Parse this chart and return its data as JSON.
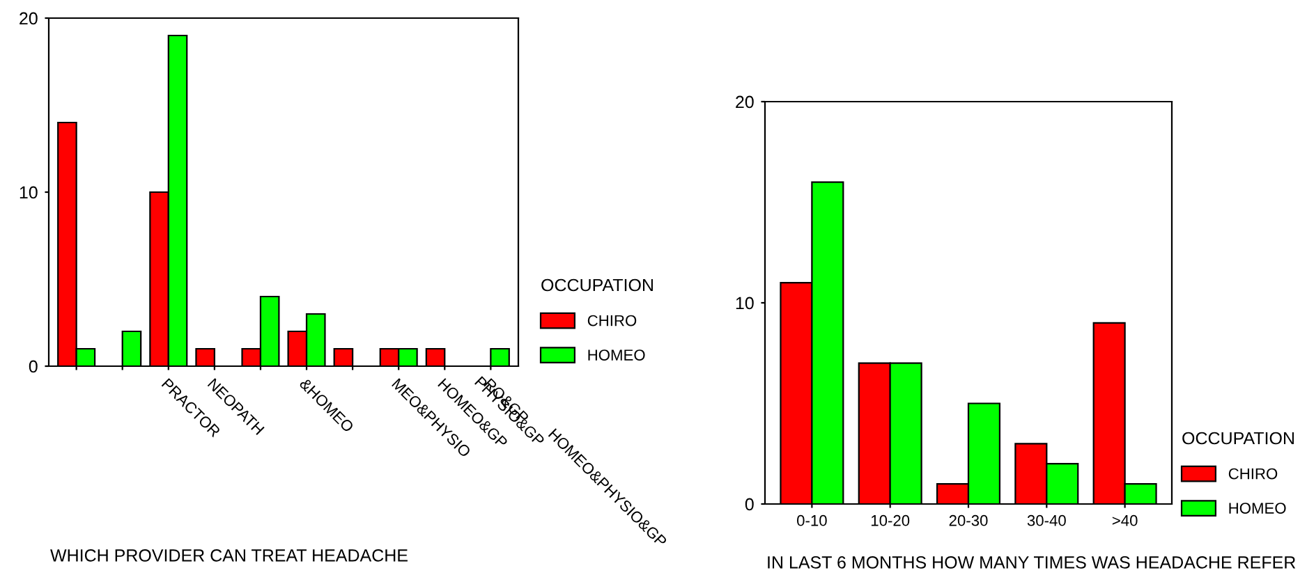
{
  "chart_data": [
    {
      "type": "bar",
      "xlabel": "WHICH PROVIDER CAN TREAT HEADACHE",
      "legend_title": "OCCUPATION",
      "legend": "right",
      "categories": [
        null,
        null,
        "PRACTOR",
        "NEOPATH",
        null,
        "&HOMEO",
        null,
        "MEO&PHYSIO",
        "HOMEO&GP",
        "RO&GP"
      ],
      "series": [
        {
          "name": "CHIRO",
          "color": "#ff0000",
          "values": [
            14,
            0,
            10,
            1,
            1,
            2,
            1,
            1,
            1,
            0
          ]
        },
        {
          "name": "HOMEO",
          "color": "#00ff00",
          "values": [
            1,
            2,
            19,
            0,
            4,
            3,
            0,
            1,
            0,
            1
          ]
        }
      ],
      "annotations": [
        "PHYSIO&GP",
        "HOMEO&PHYSIO&GP"
      ],
      "ylim": [
        0,
        20
      ],
      "yticks": [
        0,
        10,
        20
      ]
    },
    {
      "type": "bar",
      "xlabel": "IN LAST 6 MONTHS HOW MANY TIMES WAS HEADACHE REFER",
      "legend_title": "OCCUPATION",
      "legend": "right",
      "categories": [
        "0-10",
        "10-20",
        "20-30",
        "30-40",
        ">40"
      ],
      "series": [
        {
          "name": "CHIRO",
          "color": "#ff0000",
          "values": [
            11,
            7,
            1,
            3,
            9
          ]
        },
        {
          "name": "HOMEO",
          "color": "#00ff00",
          "values": [
            16,
            7,
            5,
            2,
            1
          ]
        }
      ],
      "ylim": [
        0,
        20
      ],
      "yticks": [
        0,
        10,
        20
      ]
    }
  ]
}
